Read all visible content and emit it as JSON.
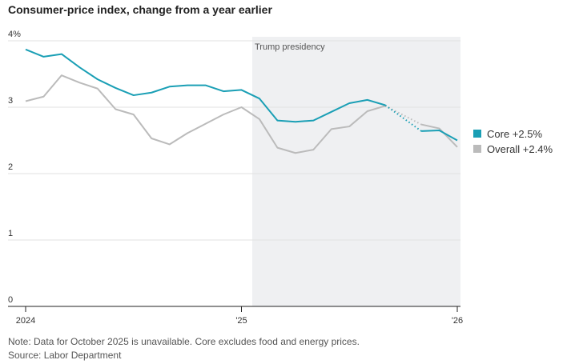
{
  "chart_data": {
    "type": "line",
    "title": "Consumer-price index, change from a year earlier",
    "categories": [
      "2024",
      null,
      null,
      null,
      null,
      null,
      null,
      null,
      null,
      null,
      null,
      null,
      "'25",
      null,
      null,
      null,
      null,
      null,
      null,
      null,
      null,
      null,
      null,
      null,
      "'26"
    ],
    "series": [
      {
        "name": "Core +2.5%",
        "color": "#1a9fb5",
        "values": [
          3.87,
          3.76,
          3.8,
          3.6,
          3.42,
          3.29,
          3.18,
          3.22,
          3.31,
          3.33,
          3.33,
          3.24,
          3.26,
          3.13,
          2.8,
          2.78,
          2.8,
          2.93,
          3.06,
          3.11,
          3.03,
          null,
          2.64,
          2.65,
          2.5
        ]
      },
      {
        "name": "Overall +2.4%",
        "color": "#bbbbbb",
        "values": [
          3.09,
          3.16,
          3.48,
          3.37,
          3.28,
          2.97,
          2.89,
          2.53,
          2.44,
          2.61,
          2.75,
          2.89,
          3.0,
          2.82,
          2.39,
          2.31,
          2.36,
          2.67,
          2.71,
          2.94,
          3.02,
          null,
          2.74,
          2.68,
          2.4
        ]
      }
    ],
    "ylim": [
      0,
      4
    ],
    "yticks": [
      0,
      1,
      2,
      3,
      {
        "value": 4,
        "label": "4%"
      }
    ],
    "grid": true,
    "shaded_label": "Trump presidency",
    "note": "Note: Data for October 2025 is unavailable. Core excludes food and energy prices.",
    "source": "Source: Labor Department"
  }
}
